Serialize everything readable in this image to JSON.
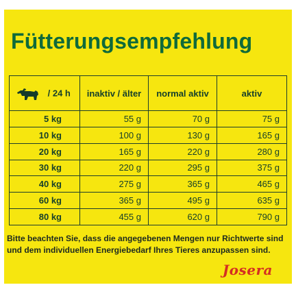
{
  "title": "Fütterungsempfehlung",
  "table": {
    "header": {
      "first_label": "/ 24 h",
      "columns": [
        "inaktiv / älter",
        "normal aktiv",
        "aktiv"
      ]
    },
    "rows": [
      {
        "weight": "5 kg",
        "values": [
          "55 g",
          "70 g",
          "75 g"
        ]
      },
      {
        "weight": "10 kg",
        "values": [
          "100 g",
          "130 g",
          "165 g"
        ]
      },
      {
        "weight": "20 kg",
        "values": [
          "165 g",
          "220 g",
          "280 g"
        ]
      },
      {
        "weight": "30 kg",
        "values": [
          "220 g",
          "295 g",
          "375 g"
        ]
      },
      {
        "weight": "40 kg",
        "values": [
          "275 g",
          "365 g",
          "465 g"
        ]
      },
      {
        "weight": "60 kg",
        "values": [
          "365 g",
          "495 g",
          "635 g"
        ]
      },
      {
        "weight": "80 kg",
        "values": [
          "455 g",
          "620 g",
          "790 g"
        ]
      }
    ]
  },
  "footnote": {
    "line1": "Bitte beachten Sie, dass die angegebenen Mengen nur Richtwerte sind",
    "line2": "und dem individuellen Energiebedarf Ihres Tieres anzupassen sind."
  },
  "brand": {
    "name": "Josera"
  },
  "icons": {
    "dog": "dog-silhouette-icon"
  },
  "colors": {
    "panel": "#f6e60f",
    "title": "#0f6a3a",
    "text": "#17402a",
    "brand": "#d42f22"
  }
}
